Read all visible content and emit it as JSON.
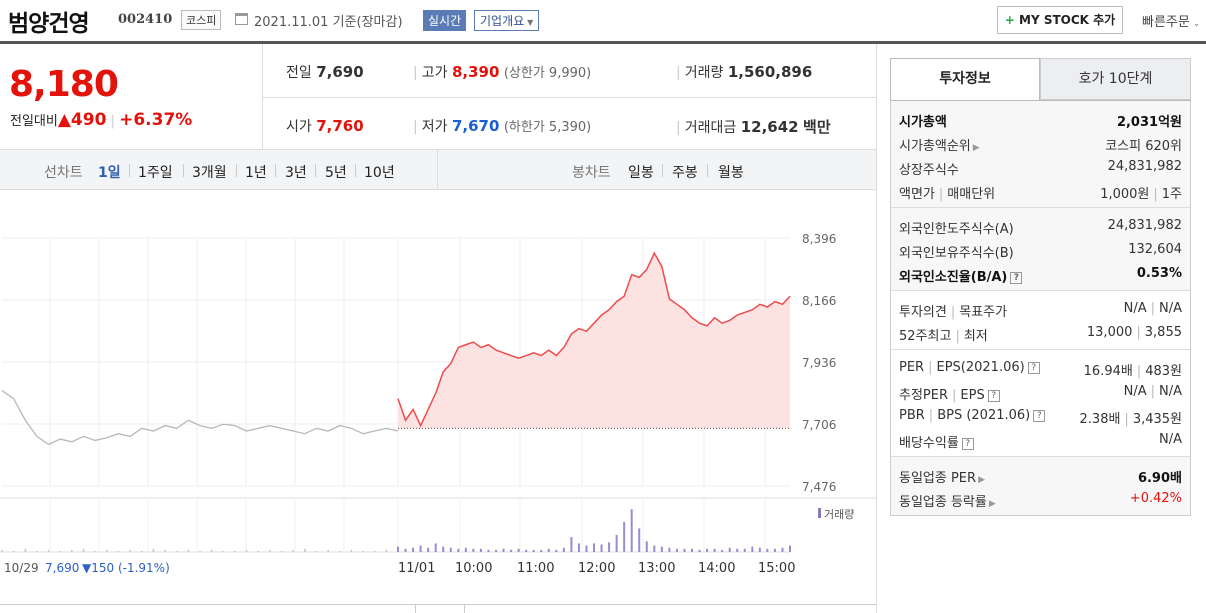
{
  "header": {
    "company": "범양건영",
    "code": "002410",
    "market": "코스피",
    "date": "2021.11.01",
    "basis": "기준(장마감)",
    "realtime_label": "실시간",
    "overview_label": "기업개요",
    "mystock_label": "MY STOCK 추가",
    "quick_order_label": "빠른주문"
  },
  "price": {
    "current": "8,180",
    "change_label": "전일대비",
    "change_amount": "490",
    "change_percent": "+6.37%",
    "prev_label": "전일",
    "prev_value": "7,690",
    "open_label": "시가",
    "open_value": "7,760",
    "high_label": "고가",
    "high_value": "8,390",
    "upper_limit": "(상한가 9,990)",
    "low_label": "저가",
    "low_value": "7,670",
    "lower_limit": "(하한가 5,390)",
    "volume_label": "거래량",
    "volume_value": "1,560,896",
    "amount_label": "거래대금",
    "amount_value": "12,642",
    "amount_unit": "백만"
  },
  "tabs": {
    "line_label": "선차트",
    "line_tabs": [
      "1일",
      "1주일",
      "3개월",
      "1년",
      "3년",
      "5년",
      "10년"
    ],
    "candle_label": "봉차트",
    "candle_tabs": [
      "일봉",
      "주봉",
      "월봉"
    ]
  },
  "chart_data": {
    "type": "line",
    "y_ticks": [
      "8,396",
      "8,166",
      "7,936",
      "7,706",
      "7,476"
    ],
    "ylim": [
      7476,
      8396
    ],
    "x_ticks": [
      "11/01",
      "10:00",
      "11:00",
      "12:00",
      "13:00",
      "14:00",
      "15:00"
    ],
    "prev_day_label": "10/29",
    "prev_day_close": "7,690",
    "prev_day_change": "▼150 (-1.91%)",
    "volume_legend": "거래량",
    "reference_price": 7690,
    "prev_day_series": [
      7830,
      7800,
      7720,
      7660,
      7630,
      7650,
      7640,
      7660,
      7645,
      7655,
      7670,
      7660,
      7690,
      7680,
      7700,
      7690,
      7720,
      7700,
      7690,
      7705,
      7700,
      7680,
      7690,
      7700,
      7690,
      7680,
      7670,
      7690,
      7680,
      7700,
      7690,
      7670,
      7680,
      7690,
      7680
    ],
    "today_series": [
      7800,
      7720,
      7760,
      7700,
      7760,
      7820,
      7900,
      7930,
      7990,
      8000,
      8010,
      7990,
      8000,
      7980,
      7970,
      7960,
      7950,
      7960,
      7970,
      7960,
      7980,
      7960,
      7990,
      8040,
      8060,
      8050,
      8080,
      8110,
      8130,
      8160,
      8180,
      8260,
      8250,
      8280,
      8340,
      8290,
      8170,
      8150,
      8130,
      8100,
      8080,
      8070,
      8100,
      8080,
      8090,
      8110,
      8120,
      8130,
      8150,
      8140,
      8160,
      8150,
      8180
    ],
    "prev_volume": [
      2,
      1,
      3,
      1,
      2,
      1,
      2,
      3,
      1,
      2,
      1,
      2,
      1,
      3,
      2,
      1,
      2,
      1,
      2,
      1,
      1,
      2,
      1,
      2,
      1,
      2,
      3,
      1,
      2,
      1,
      2,
      1,
      1,
      2,
      2
    ],
    "today_volume": [
      5,
      3,
      4,
      6,
      4,
      8,
      5,
      4,
      3,
      4,
      3,
      3,
      2,
      2,
      3,
      2,
      3,
      2,
      2,
      2,
      3,
      2,
      4,
      14,
      8,
      6,
      8,
      7,
      9,
      16,
      28,
      40,
      22,
      10,
      6,
      5,
      4,
      3,
      3,
      3,
      2,
      3,
      3,
      2,
      4,
      3,
      3,
      5,
      4,
      3,
      3,
      4,
      6
    ]
  },
  "info": {
    "tab_invest": "투자정보",
    "tab_orderbook": "호가 10단계",
    "market_cap_label": "시가총액",
    "market_cap_value": "2,031억원",
    "market_cap_rank_label": "시가총액순위",
    "market_cap_rank_value": "코스피 620위",
    "shares_label": "상장주식수",
    "shares_value": "24,831,982",
    "par_label": "액면가",
    "lot_label": "매매단위",
    "par_value": "1,000원",
    "lot_value": "1주",
    "foreign_limit_label": "외국인한도주식수(A)",
    "foreign_limit_value": "24,831,982",
    "foreign_hold_label": "외국인보유주식수(B)",
    "foreign_hold_value": "132,604",
    "foreign_rate_label": "외국인소진율(B/A)",
    "foreign_rate_value": "0.53%",
    "opinion_label": "투자의견",
    "target_label": "목표주가",
    "opinion_value": "N/A",
    "target_value": "N/A",
    "high52_label": "52주최고",
    "low52_label": "최저",
    "high52_value": "13,000",
    "low52_value": "3,855",
    "per_label": "PER",
    "eps_label": "EPS(2021.06)",
    "per_value": "16.94배",
    "eps_value": "483원",
    "est_per_label": "추정PER",
    "est_eps_label": "EPS",
    "est_per_value": "N/A",
    "est_eps_value": "N/A",
    "pbr_label": "PBR",
    "bps_label": "BPS (2021.06)",
    "pbr_value": "2.38배",
    "bps_value": "3,435원",
    "div_label": "배당수익률",
    "div_value": "N/A",
    "sector_per_label": "동일업종 PER",
    "sector_per_value": "6.90배",
    "sector_rate_label": "동일업종 등락률",
    "sector_rate_value": "+0.42%"
  }
}
